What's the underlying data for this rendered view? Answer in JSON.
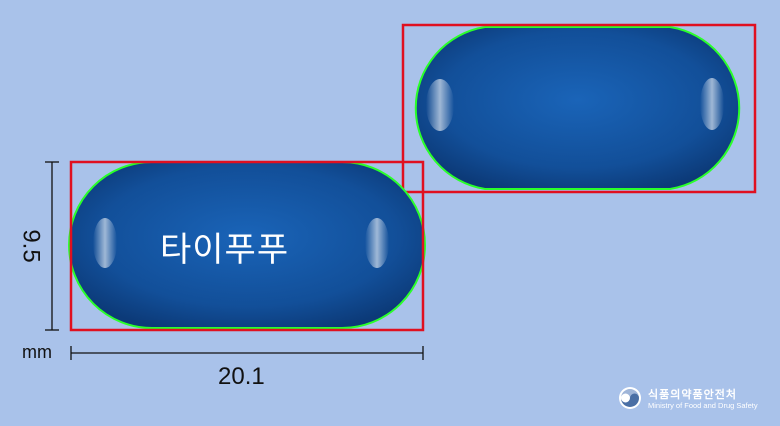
{
  "image": {
    "background_color": "#a9c2ea",
    "capsule_color": "#1e5fa8",
    "outline_color": "#22ff22",
    "box_color": "#e01020"
  },
  "capsule_front": {
    "imprint": "타이푸푸"
  },
  "dimensions": {
    "length": "20.1",
    "width": "9.5",
    "unit": "mm"
  },
  "logo": {
    "name_ko": "식품의약품안전처",
    "name_en": "Ministry of Food and Drug Safety",
    "icon": "taegeuk-icon"
  }
}
